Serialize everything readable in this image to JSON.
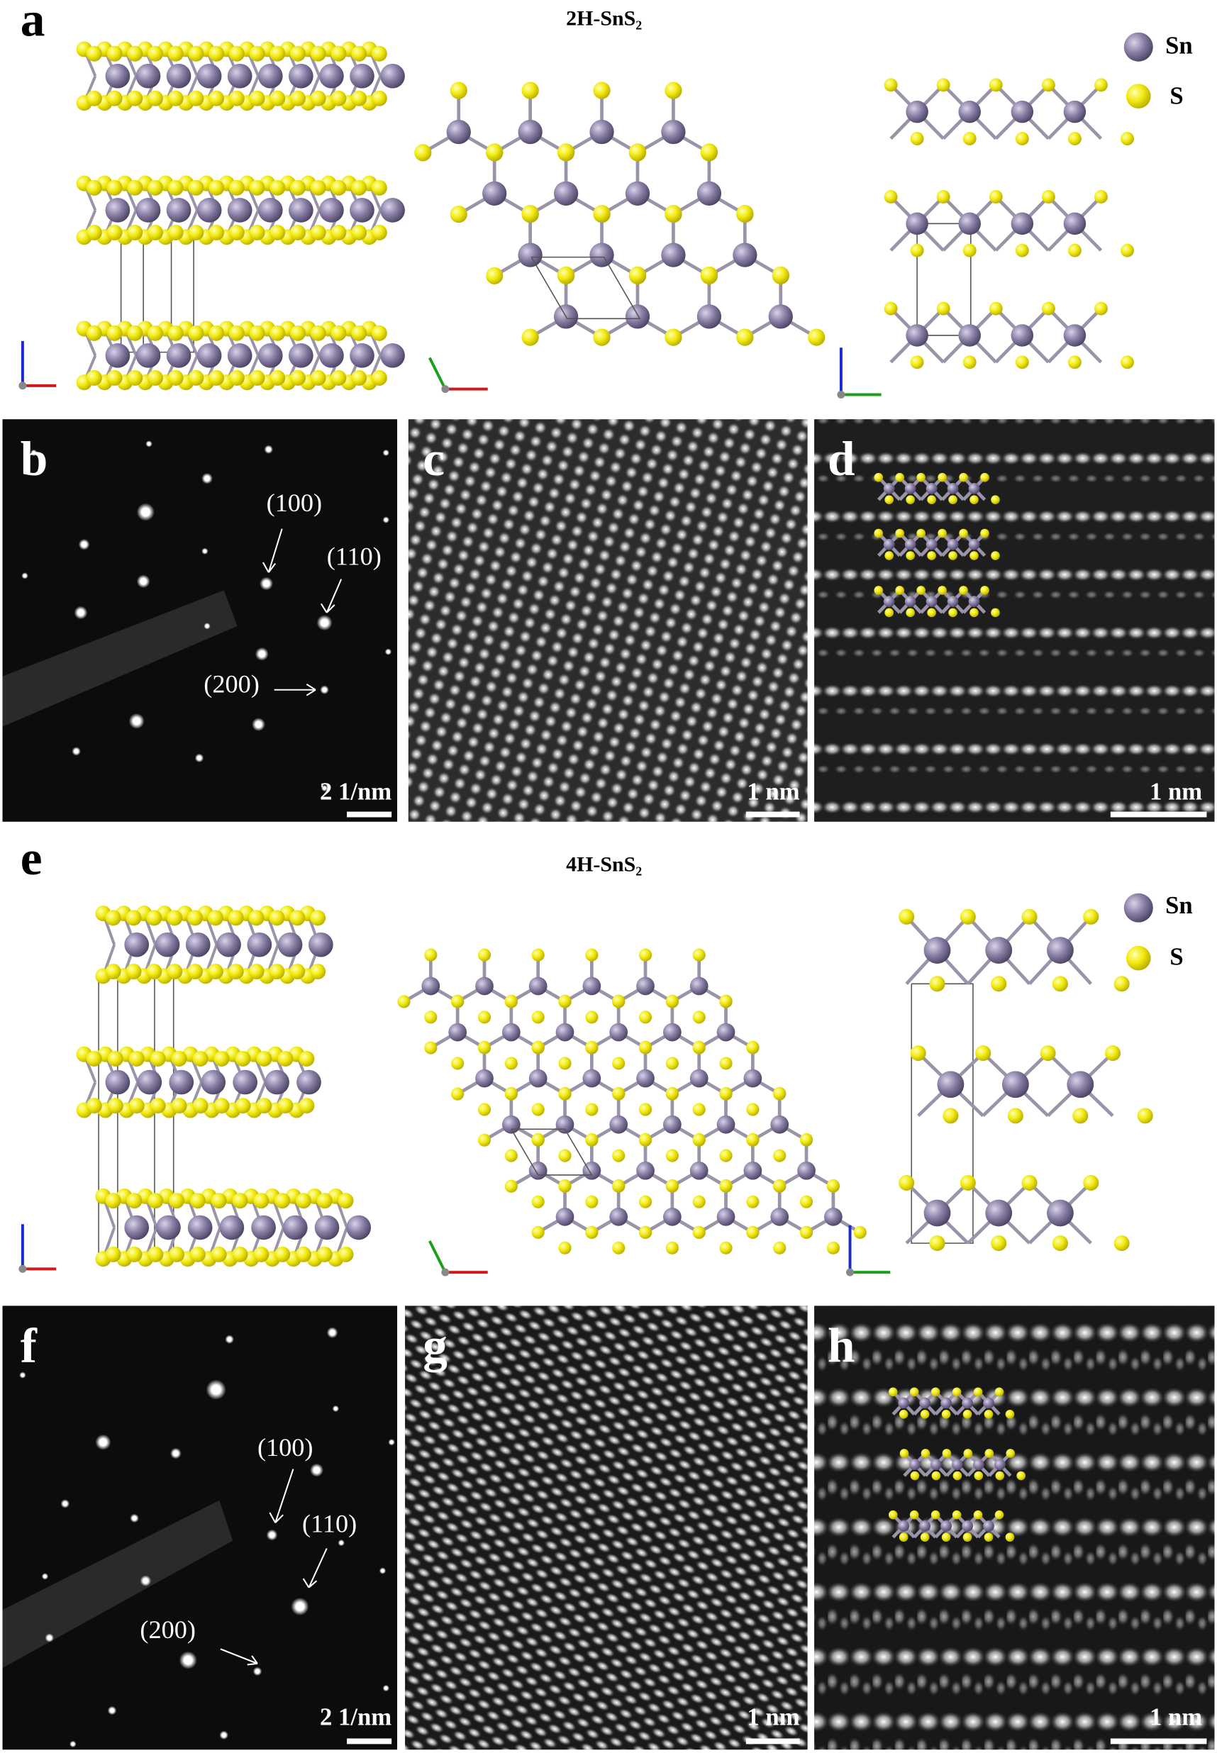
{
  "panels": [
    {
      "label": "a",
      "title": "2H-SnS₂",
      "legend": [
        "Sn",
        "S"
      ]
    },
    {
      "label": "b",
      "annotations": [
        "(100)",
        "(110)",
        "(200)"
      ],
      "scale_bar": "2 1/nm"
    },
    {
      "label": "c",
      "scale_bar": "1 nm"
    },
    {
      "label": "d",
      "scale_bar": "1 nm"
    },
    {
      "label": "e",
      "title": "4H-SnS₂",
      "legend": [
        "Sn",
        "S"
      ]
    },
    {
      "label": "f",
      "annotations": [
        "(100)",
        "(110)",
        "(200)"
      ],
      "scale_bar": "2 1/nm"
    },
    {
      "label": "g",
      "scale_bar": "1 nm"
    },
    {
      "label": "h",
      "scale_bar": "1 nm"
    }
  ]
}
